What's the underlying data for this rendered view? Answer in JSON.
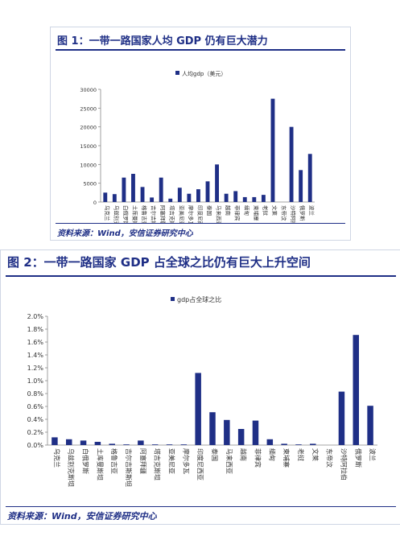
{
  "panel1": {
    "title": "图 1：一带一路国家人均 GDP 仍有巨大潜力",
    "source": "资料来源：Wind，安信证券研究中心"
  },
  "panel2": {
    "title": "图 2：一带一路国家 GDP 占全球之比仍有巨大上升空间",
    "source": "资料来源：Wind，安信证券研究中心"
  },
  "colors": {
    "bar": "#1f2f86",
    "axis": "#888888",
    "grid": "#e6e6e6"
  },
  "chart_data": [
    {
      "type": "bar",
      "title": "",
      "legend": [
        "人均gdp（美元）"
      ],
      "legend_position": "top-center",
      "ylim": [
        0,
        30000
      ],
      "yticks": [
        0,
        5000,
        10000,
        15000,
        20000,
        25000,
        30000
      ],
      "grid": false,
      "categories": [
        "乌克兰",
        "乌兹别克斯坦",
        "白俄罗斯",
        "土库曼斯坦",
        "格鲁吉亚",
        "吉尔吉斯斯坦",
        "阿塞拜疆",
        "塔吉克斯坦",
        "亚美尼亚",
        "摩尔多瓦",
        "印度尼西亚",
        "泰国",
        "马来西亚",
        "越南",
        "菲律宾",
        "缅甸",
        "柬埔寨",
        "老挝",
        "文莱",
        "东帝汶",
        "沙特阿拉伯",
        "俄罗斯",
        "波兰"
      ],
      "values": [
        2500,
        2100,
        6500,
        7500,
        4000,
        1200,
        6500,
        900,
        3800,
        2200,
        3400,
        5500,
        10000,
        2200,
        2900,
        1300,
        1300,
        1900,
        27500,
        0,
        20000,
        8500,
        12800
      ]
    },
    {
      "type": "bar",
      "title": "",
      "legend": [
        "gdp占全球之比"
      ],
      "legend_position": "top-center",
      "ylim": [
        0,
        2.0
      ],
      "yticks": [
        "0.0%",
        "0.2%",
        "0.4%",
        "0.6%",
        "0.8%",
        "1.0%",
        "1.2%",
        "1.4%",
        "1.6%",
        "1.8%",
        "2.0%"
      ],
      "grid": false,
      "categories": [
        "乌克兰",
        "乌兹别克斯坦",
        "白俄罗斯",
        "土库曼斯坦",
        "格鲁吉亚",
        "吉尔吉斯斯坦",
        "阿塞拜疆",
        "塔吉克斯坦",
        "亚美尼亚",
        "摩尔多瓦",
        "印度尼西亚",
        "泰国",
        "马来西亚",
        "越南",
        "菲律宾",
        "缅甸",
        "柬埔寨",
        "老挝",
        "文莱",
        "东帝汶",
        "沙特阿拉伯",
        "俄罗斯",
        "波兰"
      ],
      "values": [
        0.12,
        0.09,
        0.07,
        0.05,
        0.02,
        0.01,
        0.07,
        0.01,
        0.01,
        0.01,
        1.12,
        0.51,
        0.39,
        0.25,
        0.38,
        0.09,
        0.02,
        0.01,
        0.02,
        0.0,
        0.83,
        1.71,
        0.61
      ]
    }
  ]
}
